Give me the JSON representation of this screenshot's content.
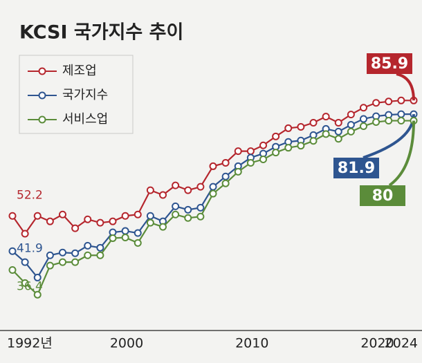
{
  "chart_data": {
    "type": "line",
    "title": "KCSI 국가지수 추이",
    "x": [
      1992,
      1993,
      1994,
      1995,
      1996,
      1997,
      1998,
      1999,
      2000,
      2001,
      2002,
      2003,
      2004,
      2005,
      2006,
      2007,
      2008,
      2009,
      2010,
      2011,
      2012,
      2013,
      2014,
      2015,
      2016,
      2017,
      2018,
      2019,
      2020,
      2021,
      2022,
      2023,
      2024
    ],
    "xlim": [
      1992,
      2024
    ],
    "xticks": [
      {
        "value": 1992,
        "label": "1992년"
      },
      2000,
      2010,
      2020,
      2024
    ],
    "ylim": [
      25,
      90
    ],
    "legend": "upper left",
    "series": [
      {
        "name": "제조업",
        "color": "#b5262d",
        "values": [
          52.2,
          47.0,
          52.2,
          50.6,
          52.6,
          48.6,
          51.2,
          50.2,
          50.6,
          52.2,
          52.6,
          59.7,
          58.3,
          61.1,
          59.7,
          60.7,
          66.7,
          67.7,
          71.1,
          71.1,
          72.8,
          75.4,
          77.8,
          78.2,
          79.4,
          81.2,
          79.4,
          81.8,
          83.8,
          85.2,
          85.6,
          85.9,
          85.9
        ]
      },
      {
        "name": "국가지수",
        "color": "#2e5590",
        "values": [
          41.9,
          38.7,
          34.2,
          40.7,
          41.5,
          41.3,
          43.5,
          42.9,
          47.4,
          47.8,
          47.2,
          52.2,
          50.6,
          55.0,
          54.0,
          54.6,
          60.7,
          63.7,
          66.7,
          69.2,
          70.4,
          72.4,
          73.8,
          74.2,
          75.8,
          77.6,
          76.8,
          78.8,
          80.5,
          81.3,
          81.7,
          81.9,
          81.9
        ]
      },
      {
        "name": "서비스업",
        "color": "#5b8c3a",
        "values": [
          36.4,
          32.6,
          29.2,
          37.7,
          38.7,
          38.7,
          40.7,
          40.7,
          45.7,
          45.9,
          44.3,
          50.2,
          49.0,
          52.6,
          51.6,
          52.0,
          58.7,
          61.7,
          65.1,
          67.7,
          68.7,
          70.7,
          72.1,
          72.7,
          74.1,
          76.1,
          74.7,
          76.8,
          78.4,
          79.6,
          80.0,
          80.0,
          80.0
        ]
      }
    ]
  }
}
